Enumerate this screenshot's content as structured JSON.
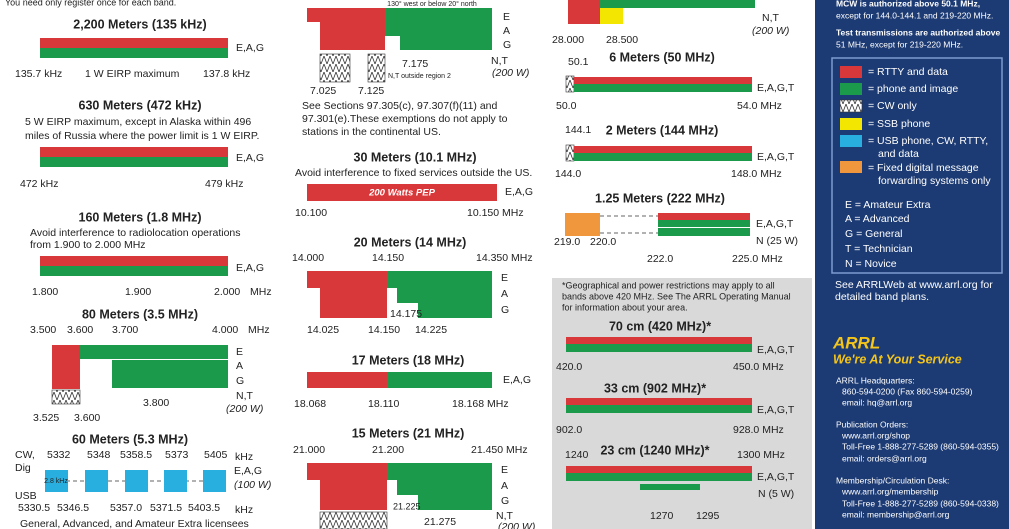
{
  "left": {
    "note": "You need only register once for each band.",
    "b2200": {
      "title": "2,200 Meters (135 kHz)",
      "priv": "E,A,G",
      "labels": [
        "135.7 kHz",
        "1 W EIRP maximum",
        "137.8 kHz"
      ]
    },
    "b630": {
      "title": "630 Meters (472 kHz)",
      "note": [
        "5 W EIRP maximum, except in Alaska within 496",
        "miles of Russia where the power limit is 1 W EIRP."
      ],
      "priv": "E,A,G",
      "labels": [
        "472 kHz",
        "479 kHz"
      ]
    },
    "b160": {
      "title": "160 Meters (1.8 MHz)",
      "note": [
        "Avoid interference to radiolocation operations",
        "from 1.900 to 2.000 MHz"
      ],
      "priv": "E,A,G",
      "labels": [
        "1.800",
        "1.900",
        "2.000",
        "MHz"
      ]
    },
    "b80": {
      "title": "80 Meters (3.5 MHz)",
      "top": [
        "3.500",
        "3.600",
        "3.700",
        "4.000",
        "MHz"
      ],
      "privs": [
        "E",
        "A",
        "G",
        "N,T",
        "(200 W)"
      ],
      "bottom": [
        "3.525",
        "3.600",
        "3.800"
      ]
    },
    "b60": {
      "title": "60 Meters (5.3 MHz)",
      "modes": [
        "CW,",
        "Dig",
        "USB"
      ],
      "top": [
        "5332",
        "5348",
        "5358.5",
        "5373",
        "5405",
        "kHz"
      ],
      "privs": [
        "E,A,G",
        "(100 W)"
      ],
      "width": "2.8 kHz",
      "bottom": [
        "5330.5",
        "5346.5",
        "5357.0",
        "5371.5",
        "5403.5",
        "kHz"
      ],
      "note": "General, Advanced, and Amateur Extra licensees"
    }
  },
  "middle": {
    "b40": {
      "note_top": "130° west or below 20° north",
      "privs": [
        "E",
        "A",
        "G",
        "N,T",
        "(200 W)"
      ],
      "labels": [
        "7.175",
        "7.025",
        "7.125"
      ],
      "nt_note": "N,T outside region 2",
      "note": [
        "See Sections 97.305(c), 97.307(f)(11) and",
        "97.301(e).These exemptions do not apply to",
        "stations in the continental US."
      ]
    },
    "b30": {
      "title": "30 Meters (10.1 MHz)",
      "note": "Avoid interference to fixed services outside the US.",
      "bar_text": "200 Watts PEP",
      "priv": "E,A,G",
      "labels": [
        "10.100",
        "10.150 MHz"
      ]
    },
    "b20": {
      "title": "20 Meters (14 MHz)",
      "top": [
        "14.000",
        "14.150",
        "14.350 MHz"
      ],
      "privs": [
        "E",
        "A",
        "G"
      ],
      "bottom": [
        "14.175",
        "14.025",
        "14.150",
        "14.225"
      ]
    },
    "b17": {
      "title": "17 Meters (18 MHz)",
      "priv": "E,A,G",
      "labels": [
        "18.068",
        "18.110",
        "18.168 MHz"
      ]
    },
    "b15": {
      "title": "15 Meters (21 MHz)",
      "top": [
        "21.000",
        "21.200",
        "21.450 MHz"
      ],
      "privs": [
        "E",
        "A",
        "G",
        "N,T",
        "(200 W)"
      ],
      "bottom": [
        "21.225",
        "21.275"
      ]
    }
  },
  "right": {
    "b10": {
      "privs": [
        "N,T",
        "(200 W)"
      ],
      "labels": [
        "28.000",
        "28.500"
      ]
    },
    "b6": {
      "title": "6 Meters (50 MHz)",
      "priv": "E,A,G,T",
      "labels": [
        "50.1",
        "50.0",
        "54.0 MHz"
      ]
    },
    "b2": {
      "title": "2 Meters (144 MHz)",
      "priv": "E,A,G,T",
      "labels": [
        "144.1",
        "144.0",
        "148.0 MHz"
      ]
    },
    "b125": {
      "title": "1.25 Meters (222 MHz)",
      "privs": [
        "E,A,G,T",
        "N (25 W)"
      ],
      "labels": [
        "219.0",
        "220.0",
        "222.0",
        "225.0 MHz"
      ]
    },
    "uhf_note": [
      "*Geographical and power restrictions may apply to all",
      "bands above 420 MHz. See The ARRL Operating Manual",
      "for information about your area."
    ],
    "b70": {
      "title": "70 cm (420 MHz)*",
      "priv": "E,A,G,T",
      "labels": [
        "420.0",
        "450.0 MHz"
      ]
    },
    "b33": {
      "title": "33 cm (902 MHz)*",
      "priv": "E,A,G,T",
      "labels": [
        "902.0",
        "928.0 MHz"
      ]
    },
    "b23": {
      "title": "23 cm (1240 MHz)*",
      "privs": [
        "E,A,G,T",
        "N (5 W)"
      ],
      "labels": [
        "1240",
        "1300 MHz",
        "1270",
        "1295"
      ]
    }
  },
  "sidebar": {
    "notes": [
      "MCW is authorized above 50.1 MHz,",
      "except for 144.0-144.1 and 219-220 MHz.",
      "Test transmissions are authorized above",
      "51 MHz, except for 219-220 MHz."
    ],
    "legend": [
      "= RTTY and data",
      "= phone and image",
      "= CW only",
      "= SSB phone",
      "= USB phone, CW, RTTY,",
      "and  data",
      "= Fixed digital message",
      "forwarding systems only"
    ],
    "classes": [
      "E = Amateur Extra",
      "A = Advanced",
      "G = General",
      "T = Technician",
      "N = Novice"
    ],
    "web": [
      "See ARRLWeb at www.arrl.org for",
      "detailed band plans."
    ],
    "brand": "ARRL",
    "slogan": "We're At Your Service",
    "contacts": [
      "ARRL Headquarters:",
      "860-594-0200  (Fax 860-594-0259)",
      "email:  hq@arrl.org",
      "Publication Orders:",
      "www.arrl.org/shop",
      "Toll-Free 1-888-277-5289 (860-594-0355)",
      "email: orders@arrl.org",
      "Membership/Circulation Desk:",
      "www.arrl.org/membership",
      "Toll-Free 1-888-277-5289 (860-594-0338)",
      "email: membership@arrl.org"
    ]
  }
}
